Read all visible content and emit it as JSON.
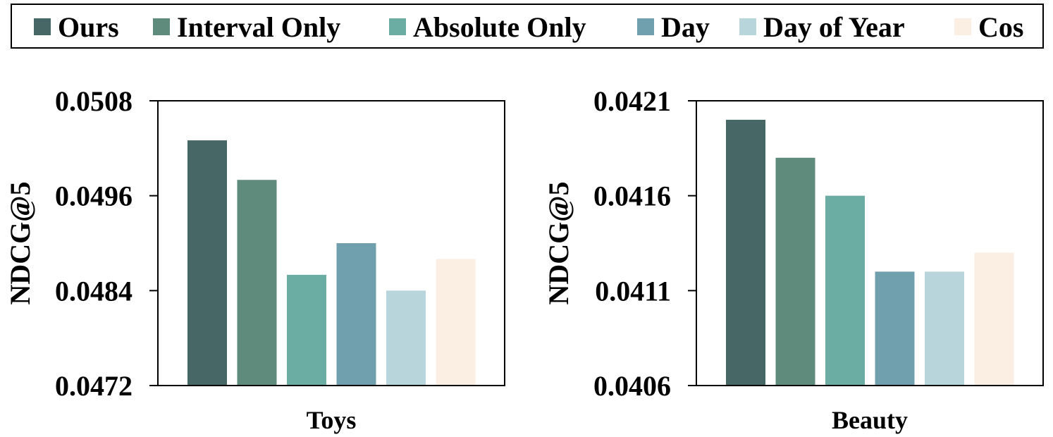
{
  "legend": {
    "items": [
      {
        "label": "Ours",
        "color": "#476766"
      },
      {
        "label": "Interval Only",
        "color": "#5e8b7c"
      },
      {
        "label": "Absolute Only",
        "color": "#6badA3"
      },
      {
        "label": "Day",
        "color": "#70a0ad"
      },
      {
        "label": "Day of Year",
        "color": "#b7d5da"
      },
      {
        "label": "Cos",
        "color": "#fbeee3"
      }
    ]
  },
  "chart_data": [
    {
      "type": "bar",
      "xlabel": "Toys",
      "ylabel": "NDCG@5",
      "ylim": [
        0.0472,
        0.0508
      ],
      "yticks": [
        "0.0472",
        "0.0484",
        "0.0496",
        "0.0508"
      ],
      "yticks_values": [
        0.0472,
        0.0484,
        0.0496,
        0.0508
      ],
      "categories": [
        "Ours",
        "Interval Only",
        "Absolute Only",
        "Day",
        "Day of Year",
        "Cos"
      ],
      "values": [
        0.0503,
        0.0498,
        0.0486,
        0.049,
        0.0484,
        0.0488
      ]
    },
    {
      "type": "bar",
      "xlabel": "Beauty",
      "ylabel": "NDCG@5",
      "ylim": [
        0.0406,
        0.0421
      ],
      "yticks": [
        "0.0406",
        "0.0411",
        "0.0416",
        "0.0421"
      ],
      "yticks_values": [
        0.0406,
        0.0411,
        0.0416,
        0.0421
      ],
      "categories": [
        "Ours",
        "Interval Only",
        "Absolute Only",
        "Day",
        "Day of Year",
        "Cos"
      ],
      "values": [
        0.042,
        0.0418,
        0.0416,
        0.0412,
        0.0412,
        0.0413
      ]
    }
  ]
}
